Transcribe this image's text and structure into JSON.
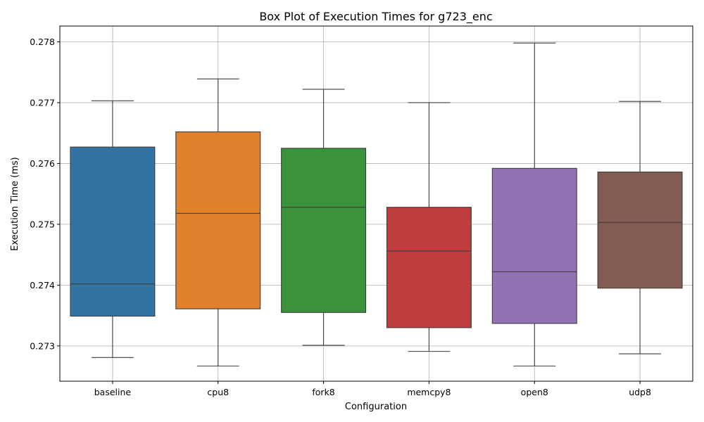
{
  "chart_data": {
    "type": "box",
    "title": "Box Plot of Execution Times for g723_enc",
    "xlabel": "Configuration",
    "ylabel": "Execution Time (ms)",
    "ylim": [
      0.27242,
      0.27826
    ],
    "yticks": [
      0.273,
      0.274,
      0.275,
      0.276,
      0.277,
      0.278
    ],
    "grid": true,
    "categories": [
      "baseline",
      "cpu8",
      "fork8",
      "memcpy8",
      "open8",
      "udp8"
    ],
    "boxes": [
      {
        "category": "baseline",
        "color": "#3274a1",
        "whisker_low": 0.27281,
        "q1": 0.27349,
        "median": 0.27402,
        "q3": 0.27627,
        "whisker_high": 0.27703
      },
      {
        "category": "cpu8",
        "color": "#e1812c",
        "whisker_low": 0.27267,
        "q1": 0.27361,
        "median": 0.27518,
        "q3": 0.27652,
        "whisker_high": 0.27739
      },
      {
        "category": "fork8",
        "color": "#3a923a",
        "whisker_low": 0.27301,
        "q1": 0.27355,
        "median": 0.27528,
        "q3": 0.27625,
        "whisker_high": 0.27722
      },
      {
        "category": "memcpy8",
        "color": "#c03d3e",
        "whisker_low": 0.27291,
        "q1": 0.2733,
        "median": 0.27456,
        "q3": 0.27528,
        "whisker_high": 0.277
      },
      {
        "category": "open8",
        "color": "#9372b2",
        "whisker_low": 0.27267,
        "q1": 0.27337,
        "median": 0.27422,
        "q3": 0.27592,
        "whisker_high": 0.27798
      },
      {
        "category": "udp8",
        "color": "#845b53",
        "whisker_low": 0.27287,
        "q1": 0.27395,
        "median": 0.27503,
        "q3": 0.27586,
        "whisker_high": 0.27702
      }
    ]
  }
}
